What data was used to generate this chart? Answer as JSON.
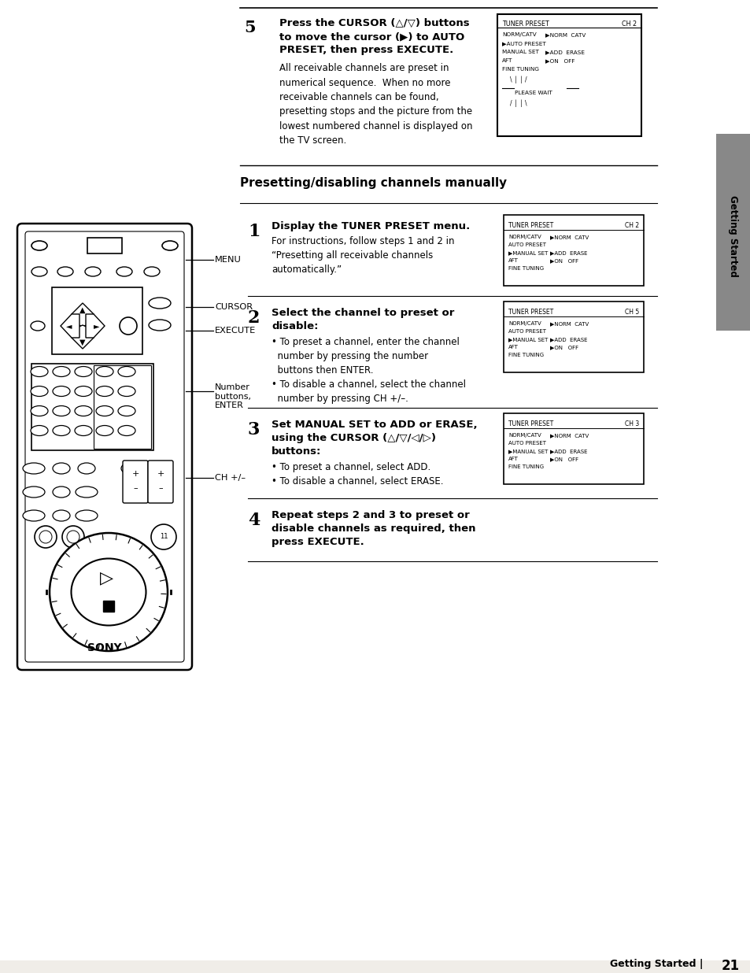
{
  "bg_color": "#f0ede8",
  "text_color": "#000000",
  "page_number": "21",
  "section_title": "Presetting/disabling channels manually",
  "step5_bold_1": "Press the CURSOR (△/▽) buttons",
  "step5_bold_2": "to move the cursor (▶) to AUTO",
  "step5_bold_3": "PRESET, then press EXECUTE.",
  "step5_body": "All receivable channels are preset in\nnumerical sequence.  When no more\nreceivable channels can be found,\npresetting stops and the picture from the\nlowest numbered channel is displayed on\nthe TV screen.",
  "step1_bold": "Display the TUNER PRESET menu.",
  "step1_body": "For instructions, follow steps 1 and 2 in\n“Presetting all receivable channels\nautomatically.”",
  "step2_bold_1": "Select the channel to preset or",
  "step2_bold_2": "disable:",
  "step2_body": "• To preset a channel, enter the channel\n  number by pressing the number\n  buttons then ENTER.\n• To disable a channel, select the channel\n  number by pressing CH +/–.",
  "step3_bold_1": "Set MANUAL SET to ADD or ERASE,",
  "step3_bold_2": "using the CURSOR (△/▽/◁/▷)",
  "step3_bold_3": "buttons:",
  "step3_body": "• To preset a channel, select ADD.\n• To disable a channel, select ERASE.",
  "step4_bold_1": "Repeat steps 2 and 3 to preset or",
  "step4_bold_2": "disable channels as required, then",
  "step4_bold_3": "press EXECUTE.",
  "menu_label": "MENU",
  "cursor_label": "CURSOR",
  "execute_label": "EXECUTE",
  "number_label": "Number\nbuttons,\nENTER",
  "ch_label": "CH +/–",
  "sony_label": "SONY",
  "sidebar_text": "Getting Started",
  "footer_text": "Getting Started |",
  "page_num": "21"
}
